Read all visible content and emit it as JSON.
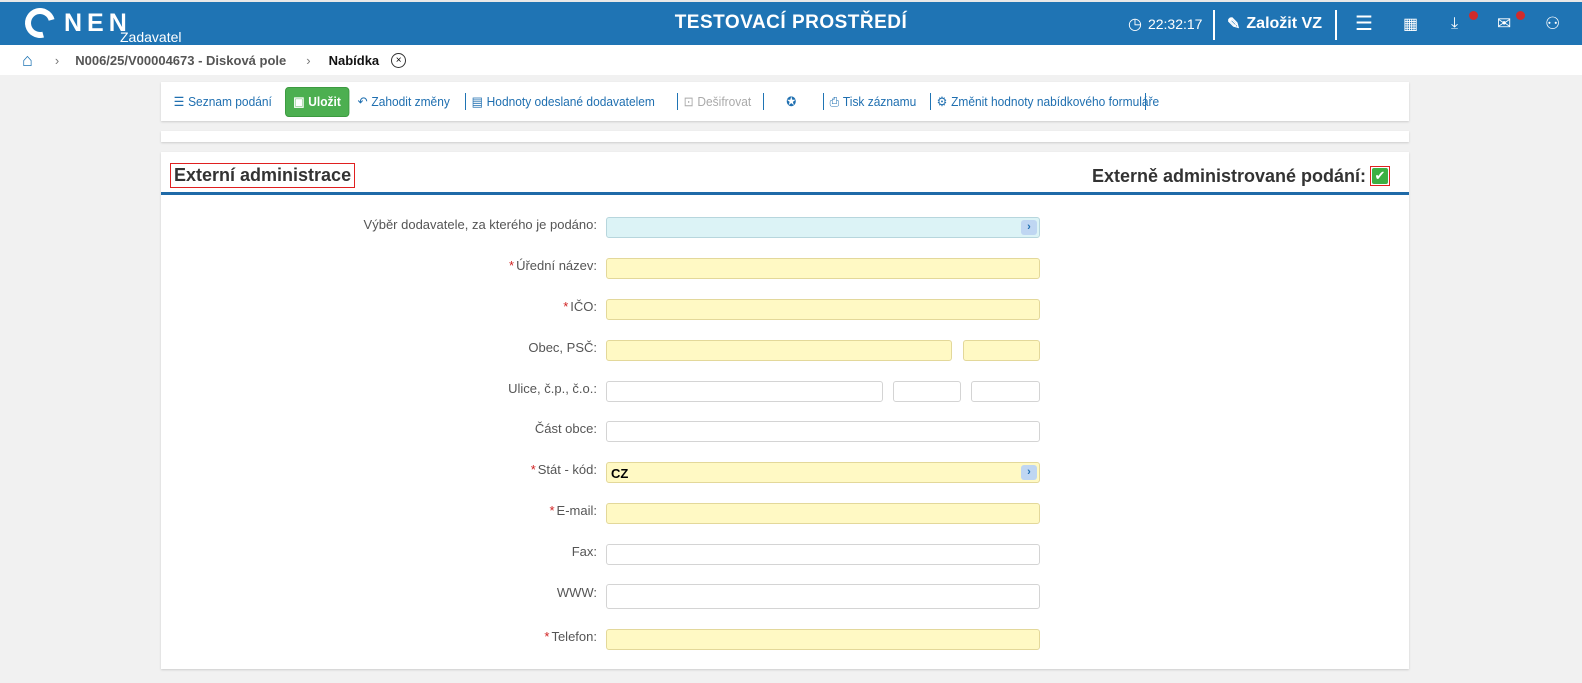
{
  "header": {
    "logo": "NEN",
    "subtitle": "Zadavatel",
    "title": "TESTOVACÍ PROSTŘEDÍ",
    "time": "22:32:17",
    "create_label": "Založit VZ",
    "notification_color": "#d02b2b",
    "bar_color": "#1f74b4"
  },
  "breadcrumb": {
    "items": [
      "N006/25/V00004673 - Disková pole",
      "Nabídka"
    ]
  },
  "toolbar": {
    "list": "Seznam podání",
    "save": "Uložit",
    "discard": "Zahodit změny",
    "sent_values": "Hodnoty odeslané dodavatelem",
    "decrypt": "Dešifrovat",
    "print": "Tisk záznamu",
    "change_values": "Změnit hodnoty nabídkového formuláře"
  },
  "section": {
    "title": "Externí administrace",
    "ext_label": "Externě administrované podání:",
    "ext_checked": true
  },
  "form": {
    "supplier": {
      "label": "Výběr dodavatele, za kterého je podáno:",
      "value": ""
    },
    "name": {
      "label": "Úřední název:",
      "required": "*"
    },
    "ico": {
      "label": "IČO:",
      "required": "*"
    },
    "city": {
      "label": "Obec, PSČ:"
    },
    "street": {
      "label": "Ulice, č.p., č.o.:"
    },
    "part": {
      "label": "Část obce:"
    },
    "country": {
      "label": "Stát - kód:",
      "required": "*",
      "value": "CZ"
    },
    "email": {
      "label": "E-mail:",
      "required": "*"
    },
    "fax": {
      "label": "Fax:"
    },
    "www": {
      "label": "WWW:"
    },
    "phone": {
      "label": "Telefon:",
      "required": "*"
    }
  }
}
